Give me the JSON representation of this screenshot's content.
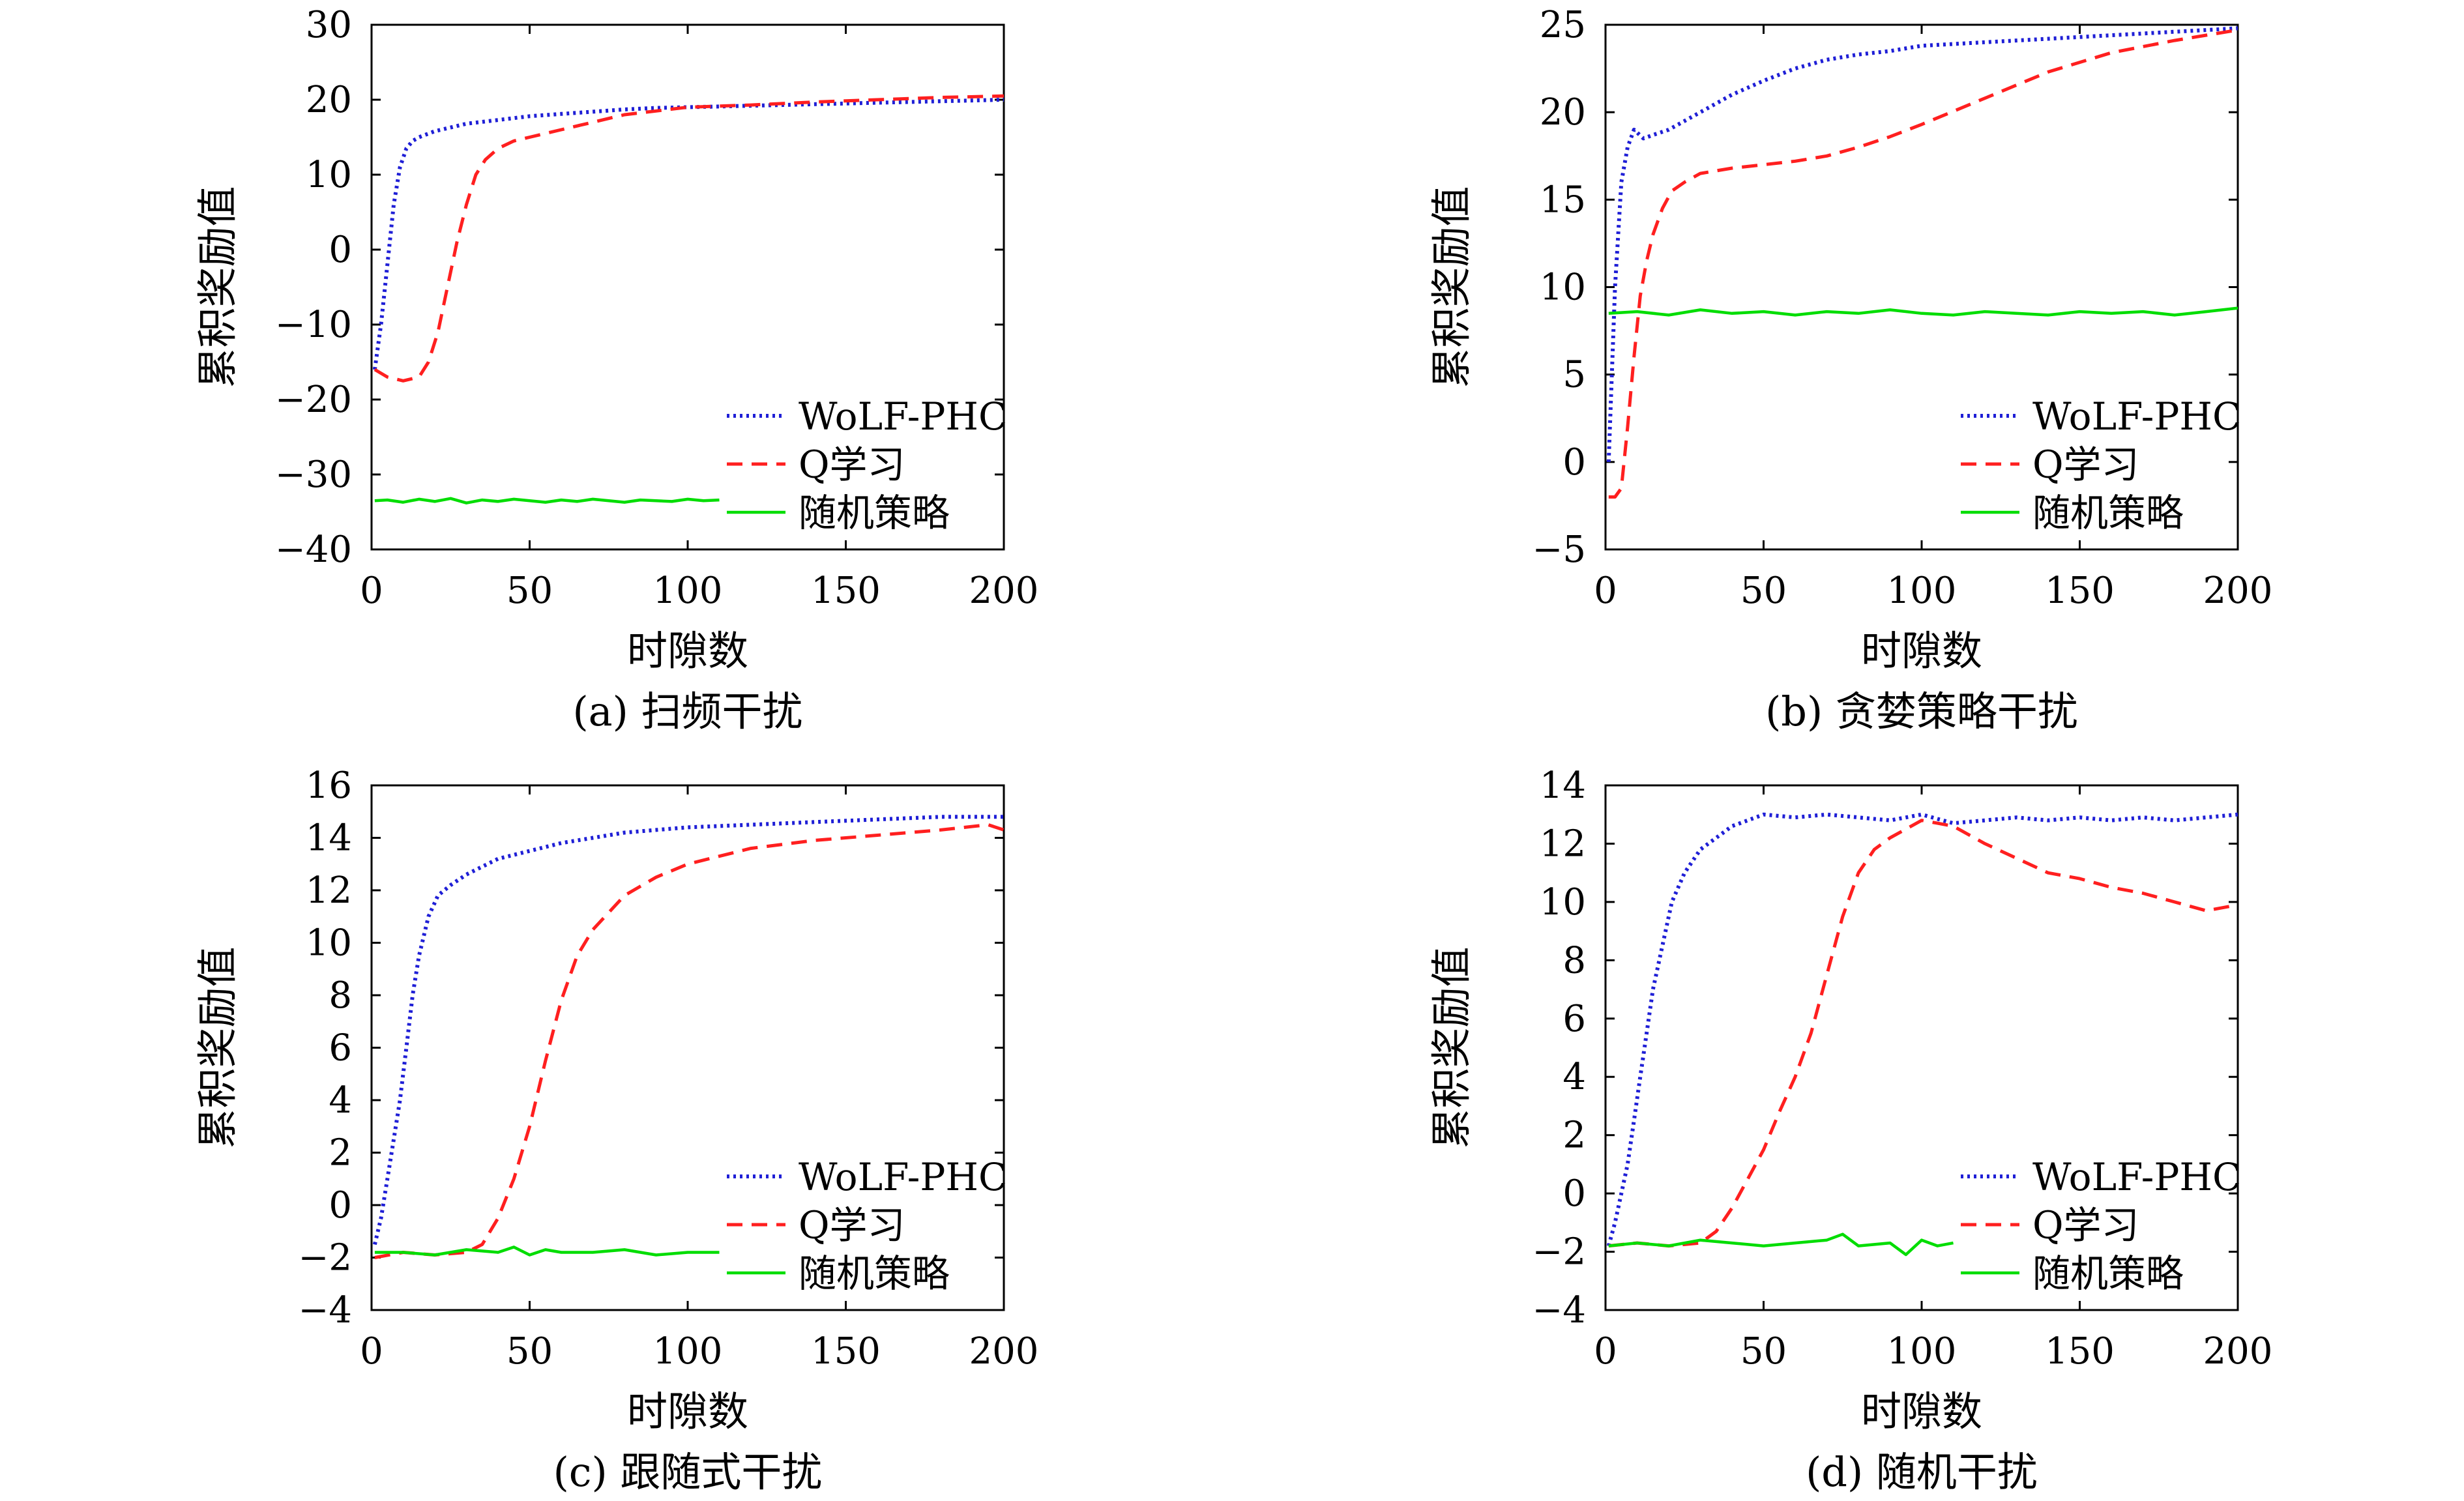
{
  "figure": {
    "legend_labels": [
      "WoLF-PHC",
      "Q学习",
      "随机策略"
    ]
  },
  "chart_data": [
    {
      "type": "line",
      "caption": "(a) 扫频干扰",
      "xlabel": "时隙数",
      "ylabel": "累积奖励值",
      "xlim": [
        0,
        200
      ],
      "ylim": [
        -40,
        30
      ],
      "xticks": [
        0,
        50,
        100,
        150,
        200
      ],
      "yticks": [
        -40,
        -30,
        -20,
        -10,
        0,
        10,
        20,
        30
      ],
      "ytick_labels": [
        "−40",
        "−30",
        "−20",
        "−10",
        "0",
        "10",
        "20",
        "30"
      ],
      "grid": false,
      "legend_position": "bottom-right",
      "series": [
        {
          "name": "WoLF-PHC",
          "color": "#1f1fd6",
          "style": "dotted",
          "x": [
            1,
            3,
            5,
            7,
            9,
            11,
            13,
            15,
            20,
            25,
            30,
            40,
            50,
            60,
            70,
            80,
            90,
            100,
            120,
            140,
            160,
            180,
            200
          ],
          "y": [
            -16,
            -10,
            -2,
            6,
            11,
            13.5,
            14.5,
            15,
            15.8,
            16.3,
            16.8,
            17.3,
            17.8,
            18.1,
            18.4,
            18.7,
            18.9,
            19.0,
            19.2,
            19.4,
            19.6,
            19.8,
            20.0
          ]
        },
        {
          "name": "Q学习",
          "color": "#ff1f1f",
          "style": "dashed",
          "x": [
            1,
            5,
            10,
            15,
            18,
            21,
            24,
            27,
            30,
            33,
            36,
            40,
            45,
            50,
            60,
            70,
            80,
            90,
            100,
            120,
            140,
            160,
            180,
            200
          ],
          "y": [
            -16,
            -17,
            -17.5,
            -17,
            -15,
            -11,
            -5,
            1,
            6,
            10,
            12,
            13.5,
            14.5,
            15,
            16,
            17,
            18,
            18.5,
            19,
            19.3,
            19.7,
            20,
            20.3,
            20.5
          ]
        },
        {
          "name": "随机策略",
          "color": "#00dd00",
          "style": "solid",
          "x": [
            1,
            5,
            10,
            15,
            20,
            25,
            30,
            35,
            40,
            45,
            50,
            55,
            60,
            65,
            70,
            75,
            80,
            85,
            90,
            95,
            100,
            105,
            110
          ],
          "y": [
            -33.5,
            -33.4,
            -33.7,
            -33.3,
            -33.6,
            -33.2,
            -33.8,
            -33.4,
            -33.6,
            -33.3,
            -33.5,
            -33.7,
            -33.4,
            -33.6,
            -33.3,
            -33.5,
            -33.7,
            -33.4,
            -33.5,
            -33.6,
            -33.3,
            -33.5,
            -33.4
          ]
        }
      ]
    },
    {
      "type": "line",
      "caption": "(b) 贪婪策略干扰",
      "xlabel": "时隙数",
      "ylabel": "累积奖励值",
      "xlim": [
        0,
        200
      ],
      "ylim": [
        -5,
        25
      ],
      "xticks": [
        0,
        50,
        100,
        150,
        200
      ],
      "yticks": [
        -5,
        0,
        5,
        10,
        15,
        20,
        25
      ],
      "ytick_labels": [
        "−5",
        "0",
        "5",
        "10",
        "15",
        "20",
        "25"
      ],
      "grid": false,
      "legend_position": "bottom-right",
      "series": [
        {
          "name": "WoLF-PHC",
          "color": "#1f1fd6",
          "style": "dotted",
          "x": [
            1,
            3,
            5,
            7,
            9,
            12,
            15,
            20,
            30,
            40,
            50,
            60,
            70,
            80,
            90,
            100,
            120,
            140,
            160,
            180,
            200
          ],
          "y": [
            0,
            10,
            16,
            18,
            19,
            18.5,
            18.7,
            19,
            20,
            21,
            21.8,
            22.5,
            23,
            23.3,
            23.5,
            23.8,
            24,
            24.2,
            24.4,
            24.6,
            24.8
          ]
        },
        {
          "name": "Q学习",
          "color": "#ff1f1f",
          "style": "dashed",
          "x": [
            1,
            3,
            5,
            7,
            9,
            11,
            13,
            15,
            18,
            21,
            25,
            30,
            40,
            50,
            60,
            70,
            80,
            90,
            100,
            120,
            140,
            160,
            180,
            200
          ],
          "y": [
            -2,
            -2,
            -1.5,
            2,
            6,
            9.5,
            11.5,
            13,
            14.5,
            15.5,
            16,
            16.5,
            16.8,
            17,
            17.2,
            17.5,
            18,
            18.6,
            19.3,
            20.8,
            22.3,
            23.4,
            24.1,
            24.7
          ]
        },
        {
          "name": "随机策略",
          "color": "#00dd00",
          "style": "solid",
          "x": [
            1,
            10,
            20,
            30,
            40,
            50,
            60,
            70,
            80,
            90,
            100,
            110,
            120,
            130,
            140,
            150,
            160,
            170,
            180,
            190,
            200
          ],
          "y": [
            8.5,
            8.6,
            8.4,
            8.7,
            8.5,
            8.6,
            8.4,
            8.6,
            8.5,
            8.7,
            8.5,
            8.4,
            8.6,
            8.5,
            8.4,
            8.6,
            8.5,
            8.6,
            8.4,
            8.6,
            8.8
          ]
        }
      ]
    },
    {
      "type": "line",
      "caption": "(c) 跟随式干扰",
      "xlabel": "时隙数",
      "ylabel": "累积奖励值",
      "xlim": [
        0,
        200
      ],
      "ylim": [
        -4,
        16
      ],
      "xticks": [
        0,
        50,
        100,
        150,
        200
      ],
      "yticks": [
        -4,
        -2,
        0,
        2,
        4,
        6,
        8,
        10,
        12,
        14,
        16
      ],
      "ytick_labels": [
        "−4",
        "−2",
        "0",
        "2",
        "4",
        "6",
        "8",
        "10",
        "12",
        "14",
        "16"
      ],
      "grid": false,
      "legend_position": "bottom-right",
      "series": [
        {
          "name": "WoLF-PHC",
          "color": "#1f1fd6",
          "style": "dotted",
          "x": [
            1,
            3,
            5,
            7,
            9,
            11,
            13,
            15,
            18,
            21,
            25,
            30,
            40,
            50,
            60,
            70,
            80,
            90,
            100,
            120,
            140,
            160,
            180,
            200
          ],
          "y": [
            -1.5,
            -0.5,
            1,
            2.5,
            4,
            6,
            8,
            9.5,
            11,
            11.8,
            12.2,
            12.6,
            13.2,
            13.5,
            13.8,
            14,
            14.2,
            14.3,
            14.4,
            14.5,
            14.6,
            14.7,
            14.8,
            14.8
          ]
        },
        {
          "name": "Q学习",
          "color": "#ff1f1f",
          "style": "dashed",
          "x": [
            1,
            10,
            20,
            30,
            35,
            40,
            45,
            50,
            55,
            60,
            65,
            70,
            80,
            90,
            100,
            110,
            120,
            140,
            160,
            180,
            195,
            200
          ],
          "y": [
            -2,
            -1.8,
            -1.9,
            -1.8,
            -1.5,
            -0.5,
            1,
            3,
            5.5,
            7.8,
            9.5,
            10.5,
            11.8,
            12.5,
            13,
            13.3,
            13.6,
            13.9,
            14.1,
            14.3,
            14.5,
            14.3
          ]
        },
        {
          "name": "随机策略",
          "color": "#00dd00",
          "style": "solid",
          "x": [
            1,
            10,
            20,
            30,
            40,
            45,
            50,
            55,
            60,
            70,
            80,
            90,
            100,
            110
          ],
          "y": [
            -1.8,
            -1.8,
            -1.9,
            -1.7,
            -1.8,
            -1.6,
            -1.9,
            -1.7,
            -1.8,
            -1.8,
            -1.7,
            -1.9,
            -1.8,
            -1.8
          ]
        }
      ]
    },
    {
      "type": "line",
      "caption": "(d) 随机干扰",
      "xlabel": "时隙数",
      "ylabel": "累积奖励值",
      "xlim": [
        0,
        200
      ],
      "ylim": [
        -4,
        14
      ],
      "xticks": [
        0,
        50,
        100,
        150,
        200
      ],
      "yticks": [
        -4,
        -2,
        0,
        2,
        4,
        6,
        8,
        10,
        12,
        14
      ],
      "ytick_labels": [
        "−4",
        "−2",
        "0",
        "2",
        "4",
        "6",
        "8",
        "10",
        "12",
        "14"
      ],
      "grid": false,
      "legend_position": "bottom-right",
      "series": [
        {
          "name": "WoLF-PHC",
          "color": "#1f1fd6",
          "style": "dotted",
          "x": [
            1,
            3,
            5,
            7,
            9,
            11,
            13,
            15,
            18,
            21,
            25,
            30,
            35,
            40,
            45,
            50,
            60,
            70,
            80,
            90,
            100,
            110,
            120,
            130,
            140,
            150,
            160,
            170,
            180,
            190,
            200
          ],
          "y": [
            -1.8,
            -1,
            0,
            1,
            2.5,
            4,
            5.5,
            7,
            8.5,
            10,
            11,
            11.8,
            12.2,
            12.6,
            12.8,
            13,
            12.9,
            13,
            12.9,
            12.8,
            13,
            12.7,
            12.8,
            12.9,
            12.8,
            12.9,
            12.8,
            12.9,
            12.8,
            12.9,
            13
          ]
        },
        {
          "name": "Q学习",
          "color": "#ff1f1f",
          "style": "dashed",
          "x": [
            1,
            10,
            20,
            30,
            35,
            40,
            45,
            50,
            55,
            60,
            65,
            70,
            75,
            80,
            85,
            90,
            95,
            100,
            105,
            110,
            120,
            130,
            140,
            150,
            160,
            170,
            180,
            190,
            200
          ],
          "y": [
            -1.8,
            -1.7,
            -1.8,
            -1.7,
            -1.3,
            -0.5,
            0.5,
            1.5,
            2.8,
            4,
            5.5,
            7.5,
            9.5,
            11,
            11.8,
            12.2,
            12.5,
            12.8,
            12.7,
            12.6,
            12,
            11.5,
            11,
            10.8,
            10.5,
            10.3,
            10,
            9.7,
            9.9
          ]
        },
        {
          "name": "随机策略",
          "color": "#00dd00",
          "style": "solid",
          "x": [
            1,
            10,
            20,
            30,
            40,
            50,
            60,
            70,
            75,
            80,
            90,
            95,
            100,
            105,
            110
          ],
          "y": [
            -1.8,
            -1.7,
            -1.8,
            -1.6,
            -1.7,
            -1.8,
            -1.7,
            -1.6,
            -1.4,
            -1.8,
            -1.7,
            -2.1,
            -1.6,
            -1.8,
            -1.7
          ]
        }
      ]
    }
  ]
}
